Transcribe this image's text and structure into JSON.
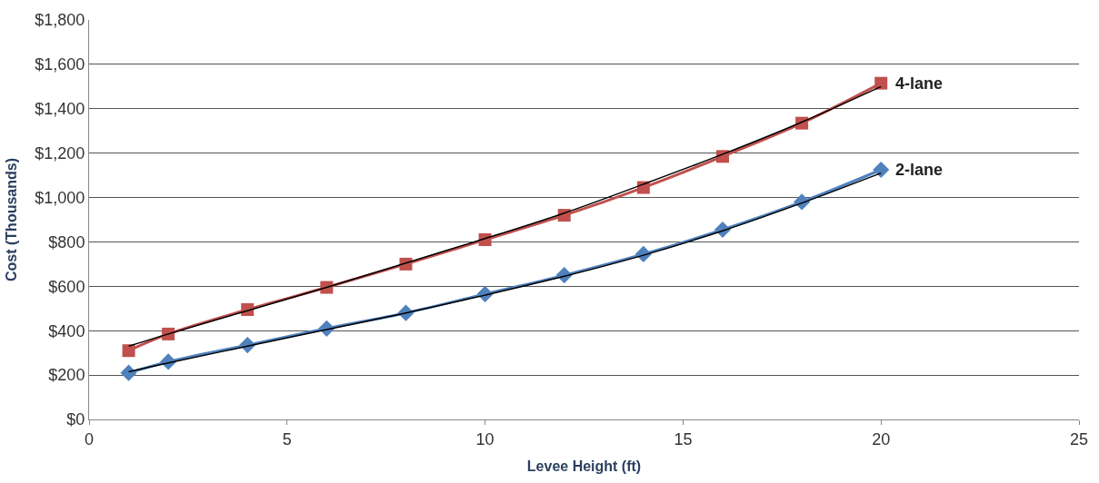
{
  "chart_data": {
    "type": "line",
    "xlabel": "Levee Height (ft)",
    "ylabel": "Cost (Thousands)",
    "x": [
      1,
      2,
      4,
      6,
      8,
      10,
      12,
      14,
      16,
      18,
      20
    ],
    "series": [
      {
        "name": "4-lane",
        "color": "#c0504d",
        "marker": "square",
        "values": [
          310,
          385,
          495,
          595,
          700,
          810,
          920,
          1045,
          1185,
          1335,
          1515
        ]
      },
      {
        "name": "2-lane",
        "color": "#4f81bd",
        "marker": "diamond",
        "values": [
          210,
          260,
          335,
          410,
          480,
          565,
          650,
          745,
          855,
          980,
          1125
        ]
      },
      {
        "color": "#000000",
        "marker": "none",
        "values": [
          330,
          385,
          490,
          595,
          705,
          815,
          930,
          1060,
          1195,
          1340,
          1500
        ]
      },
      {
        "color": "#000000",
        "marker": "none",
        "values": [
          215,
          255,
          330,
          405,
          480,
          560,
          645,
          740,
          850,
          975,
          1110
        ]
      }
    ],
    "xlim": [
      0,
      25
    ],
    "xticks": [
      0,
      5,
      10,
      15,
      20,
      25
    ],
    "ylim": [
      0,
      1800
    ],
    "yticks": [
      {
        "value": 0,
        "label": "$0"
      },
      {
        "value": 200,
        "label": "$200"
      },
      {
        "value": 400,
        "label": "$400"
      },
      {
        "value": 600,
        "label": "$600"
      },
      {
        "value": 800,
        "label": "$800"
      },
      {
        "value": 1000,
        "label": "$1,000"
      },
      {
        "value": 1200,
        "label": "$1,200"
      },
      {
        "value": 1400,
        "label": "$1,400"
      },
      {
        "value": 1600,
        "label": "$1,600"
      },
      {
        "value": 1800,
        "label": "$1,800"
      }
    ],
    "grid": "y"
  }
}
